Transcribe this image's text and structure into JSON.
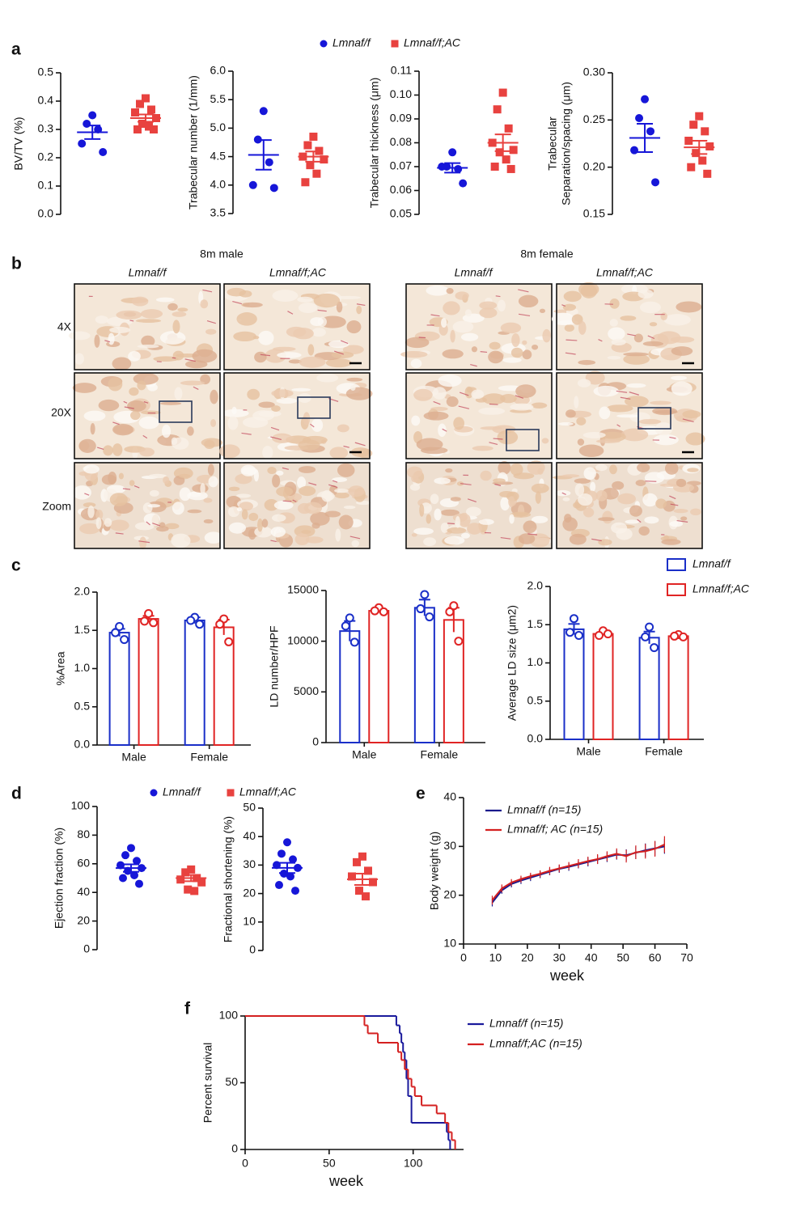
{
  "panel_labels": [
    "a",
    "b",
    "c",
    "d",
    "e",
    "f"
  ],
  "images": {
    "groups": [
      {
        "title": "8m male",
        "columns": [
          "Lmnaf/f",
          "Lmnaf/f;AC"
        ]
      },
      {
        "title": "8m female",
        "columns": [
          "Lmnaf/f",
          "Lmnaf/f;AC"
        ]
      }
    ],
    "rows": [
      "4X",
      "20X",
      "Zoom"
    ]
  },
  "chart_data": [
    {
      "type": "dot",
      "ylabel": "BV/TV (%)",
      "ylim": [
        0,
        0.5
      ],
      "yticks": [
        {
          "value": 0,
          "label": "0.0"
        },
        0.1,
        0.2,
        0.3,
        0.4,
        0.5
      ],
      "series": [
        {
          "name": "Lmnaf/f",
          "color": "#1616d8",
          "marker": "circle",
          "values": [
            0.35,
            0.32,
            0.3,
            0.25,
            0.22
          ],
          "mean": 0.29,
          "sem": 0.024
        },
        {
          "name": "Lmnaf/f;AC",
          "color": "#e8423f",
          "marker": "square",
          "values": [
            0.41,
            0.39,
            0.37,
            0.36,
            0.34,
            0.32,
            0.31,
            0.3,
            0.3
          ],
          "mean": 0.34,
          "sem": 0.013
        }
      ]
    },
    {
      "type": "dot",
      "ylabel": "Trabecular number (1/mm)",
      "ylim": [
        3.5,
        6.0
      ],
      "yticks": [
        3.5,
        {
          "value": 4,
          "label": "4.0"
        },
        4.5,
        {
          "value": 5,
          "label": "5.0"
        },
        5.5,
        {
          "value": 6,
          "label": "6.0"
        }
      ],
      "series": [
        {
          "color": "#1616d8",
          "marker": "circle",
          "values": [
            5.3,
            4.8,
            4.4,
            4.0,
            3.95
          ],
          "mean": 4.53,
          "sem": 0.26
        },
        {
          "color": "#e8423f",
          "marker": "square",
          "values": [
            4.85,
            4.7,
            4.6,
            4.5,
            4.45,
            4.35,
            4.2,
            4.05
          ],
          "mean": 4.5,
          "sem": 0.09
        }
      ]
    },
    {
      "type": "dot",
      "ylabel": "Trabecular thickness (μm)",
      "ylim": [
        0.05,
        0.11
      ],
      "yticks": [
        0.05,
        0.06,
        0.07,
        0.08,
        0.09,
        {
          "value": 0.1,
          "label": "0.10"
        },
        0.11
      ],
      "series": [
        {
          "color": "#1616d8",
          "marker": "circle",
          "values": [
            0.076,
            0.07,
            0.069,
            0.07,
            0.063
          ],
          "mean": 0.0695,
          "sem": 0.002
        },
        {
          "color": "#e8423f",
          "marker": "square",
          "values": [
            0.101,
            0.094,
            0.086,
            0.08,
            0.077,
            0.076,
            0.073,
            0.07,
            0.069
          ],
          "mean": 0.08,
          "sem": 0.0035
        }
      ]
    },
    {
      "type": "dot",
      "ylabel": [
        "Trabecular",
        "Separation/spacing (μm)"
      ],
      "ylim": [
        0.15,
        0.3
      ],
      "yticks": [
        0.15,
        {
          "value": 0.2,
          "label": "0.20"
        },
        0.25,
        {
          "value": 0.3,
          "label": "0.30"
        }
      ],
      "series": [
        {
          "color": "#1616d8",
          "marker": "circle",
          "values": [
            0.272,
            0.252,
            0.238,
            0.218,
            0.184
          ],
          "mean": 0.231,
          "sem": 0.015
        },
        {
          "color": "#e8423f",
          "marker": "square",
          "values": [
            0.254,
            0.245,
            0.238,
            0.228,
            0.222,
            0.215,
            0.207,
            0.2,
            0.193
          ],
          "mean": 0.221,
          "sem": 0.007
        }
      ]
    },
    {
      "type": "bar",
      "ylabel": "%Area",
      "categories": [
        "Male",
        "Female"
      ],
      "ylim": [
        0,
        2
      ],
      "yticks": [
        {
          "value": 0,
          "label": "0.0"
        },
        0.5,
        {
          "value": 1,
          "label": "1.0"
        },
        1.5,
        {
          "value": 2,
          "label": "2.0"
        }
      ],
      "series": [
        {
          "color": "#1a2fc8",
          "values": [
            1.47,
            1.63
          ],
          "errors": [
            0.05,
            0.04
          ],
          "points": [
            [
              1.55,
              1.47,
              1.38
            ],
            [
              1.67,
              1.63,
              1.58
            ]
          ]
        },
        {
          "color": "#e02424",
          "values": [
            1.65,
            1.54
          ],
          "errors": [
            0.04,
            0.1
          ],
          "points": [
            [
              1.72,
              1.62,
              1.6
            ],
            [
              1.65,
              1.58,
              1.35
            ]
          ]
        }
      ]
    },
    {
      "type": "bar",
      "ylabel": "LD number/HPF",
      "categories": [
        "Male",
        "Female"
      ],
      "ylim": [
        0,
        15000
      ],
      "yticks": [
        0,
        5000,
        10000,
        15000
      ],
      "series": [
        {
          "color": "#1a2fc8",
          "values": [
            11000,
            13300
          ],
          "errors": [
            1000,
            800
          ],
          "points": [
            [
              12300,
              11500,
              9900
            ],
            [
              14600,
              13200,
              12400
            ]
          ]
        },
        {
          "color": "#e02424",
          "values": [
            13000,
            12100
          ],
          "errors": [
            200,
            1200
          ],
          "points": [
            [
              13300,
              13000,
              12900
            ],
            [
              13500,
              12900,
              10000
            ]
          ]
        }
      ]
    },
    {
      "type": "bar",
      "ylabel": "Average LD size (μm2)",
      "categories": [
        "Male",
        "Female"
      ],
      "ylim": [
        0,
        2
      ],
      "yticks": [
        {
          "value": 0,
          "label": "0.0"
        },
        0.5,
        {
          "value": 1,
          "label": "1.0"
        },
        1.5,
        {
          "value": 2,
          "label": "2.0"
        }
      ],
      "series": [
        {
          "name": "Lmnaf/f",
          "color": "#1a2fc8",
          "values": [
            1.44,
            1.33
          ],
          "errors": [
            0.07,
            0.08
          ],
          "points": [
            [
              1.58,
              1.4,
              1.36
            ],
            [
              1.47,
              1.34,
              1.2
            ]
          ]
        },
        {
          "name": "Lmnaf/f;AC",
          "color": "#e02424",
          "values": [
            1.38,
            1.35
          ],
          "errors": [
            0.02,
            0.01
          ],
          "points": [
            [
              1.42,
              1.36,
              1.38
            ],
            [
              1.37,
              1.35,
              1.34
            ]
          ]
        }
      ]
    },
    {
      "type": "dot",
      "ylabel": "Ejection fraction (%)",
      "ylim": [
        0,
        100
      ],
      "yticks": [
        0,
        20,
        40,
        60,
        80,
        100
      ],
      "series": [
        {
          "name": "Lmnaf/f",
          "color": "#1616d8",
          "marker": "circle",
          "values": [
            71,
            66,
            62,
            59,
            57,
            55,
            52,
            50,
            46
          ],
          "mean": 57,
          "sem": 2.6
        },
        {
          "name": "Lmnaf/f;AC",
          "color": "#e8423f",
          "marker": "square",
          "values": [
            56,
            54,
            50,
            49,
            47,
            42,
            41
          ],
          "mean": 50,
          "sem": 2.2
        }
      ]
    },
    {
      "type": "dot",
      "ylabel": "Fractional shortening (%)",
      "ylim": [
        0,
        50
      ],
      "yticks": [
        0,
        10,
        20,
        30,
        40,
        50
      ],
      "series": [
        {
          "color": "#1616d8",
          "marker": "circle",
          "values": [
            38,
            34,
            32,
            30,
            29,
            27,
            26,
            23,
            21
          ],
          "mean": 29,
          "sem": 1.8
        },
        {
          "color": "#e8423f",
          "marker": "square",
          "values": [
            33,
            31,
            28,
            26,
            24,
            21,
            19
          ],
          "mean": 25,
          "sem": 2
        }
      ]
    },
    {
      "type": "line",
      "ylabel": "Body weight (g)",
      "xlabel": "week",
      "xlim": [
        0,
        70
      ],
      "xticks": [
        0,
        10,
        20,
        30,
        40,
        50,
        60,
        70
      ],
      "ylim": [
        10,
        40
      ],
      "yticks": [
        10,
        20,
        30,
        40
      ],
      "x": [
        9,
        12,
        15,
        18,
        21,
        24,
        27,
        30,
        33,
        36,
        39,
        42,
        45,
        48,
        51,
        54,
        57,
        60,
        63
      ],
      "series": [
        {
          "name": "Lmnaf/f (n=15)",
          "color": "#1a1a8c",
          "values": [
            18.5,
            21,
            22.3,
            23,
            23.6,
            24.2,
            24.8,
            25.4,
            25.8,
            26.3,
            26.8,
            27.3,
            27.8,
            28.3,
            28.2,
            28.7,
            29.2,
            29.6,
            30.0
          ],
          "errors": [
            0.8,
            0.7,
            0.7,
            0.7,
            0.7,
            0.7,
            0.7,
            0.8,
            0.8,
            0.8,
            0.9,
            0.9,
            1.0,
            1.0,
            1.2,
            1.3,
            1.4,
            1.5,
            1.5
          ]
        },
        {
          "name": "Lmnaf/f; AC (n=15)",
          "color": "#d42020",
          "values": [
            19.0,
            21.4,
            22.6,
            23.3,
            23.9,
            24.4,
            25.0,
            25.5,
            26.0,
            26.5,
            27.0,
            27.4,
            28.0,
            28.5,
            28.0,
            28.8,
            29.0,
            29.5,
            30.4
          ],
          "errors": [
            0.9,
            0.8,
            0.7,
            0.7,
            0.7,
            0.7,
            0.8,
            0.8,
            0.8,
            0.9,
            0.9,
            1.0,
            1.0,
            1.1,
            1.3,
            1.4,
            1.5,
            1.6,
            1.7
          ]
        }
      ]
    },
    {
      "type": "step",
      "ylabel": "Percent survival",
      "xlabel": "week",
      "xlim": [
        0,
        130
      ],
      "xticks": [
        0,
        50,
        100
      ],
      "ylim": [
        0,
        100
      ],
      "yticks": [
        0,
        50,
        100
      ],
      "series": [
        {
          "name": "Lmnaf/f  (n=15)",
          "color": "#1a1a9c",
          "x": [
            0,
            90,
            92,
            93,
            94,
            95,
            96,
            97,
            99,
            120,
            121,
            122
          ],
          "values": [
            100,
            93,
            87,
            80,
            73,
            67,
            53,
            40,
            20,
            13,
            7,
            0
          ]
        },
        {
          "name": "Lmnaf/f;AC (n=15)",
          "color": "#d42020",
          "x": [
            0,
            71,
            73,
            79,
            91,
            93,
            95,
            97,
            99,
            101,
            105,
            114,
            119,
            121,
            123,
            125
          ],
          "values": [
            100,
            93,
            87,
            80,
            73,
            67,
            60,
            53,
            47,
            40,
            33,
            27,
            20,
            13,
            7,
            0
          ]
        }
      ]
    }
  ]
}
